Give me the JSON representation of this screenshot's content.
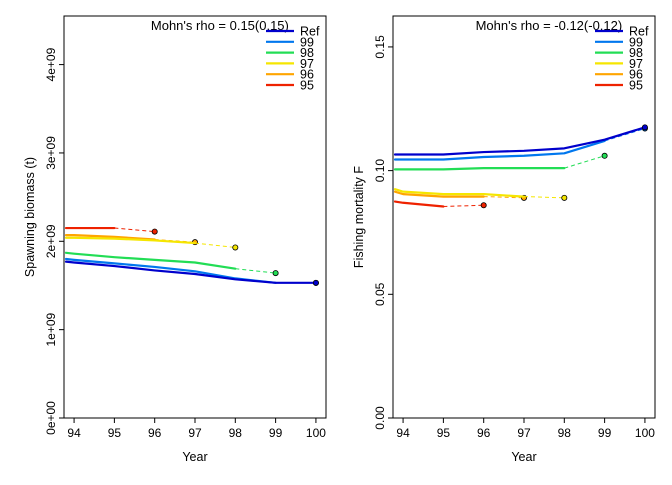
{
  "chart_data": [
    {
      "type": "line",
      "annotation": "Mohn's rho = 0.15(0.15)",
      "xlabel": "Year",
      "ylabel": "Spawning biomass (t)",
      "xlim": [
        93.75,
        100.25
      ],
      "ylim": [
        0,
        4550000000.0
      ],
      "x_ticks": [
        94,
        95,
        96,
        97,
        98,
        99,
        100
      ],
      "x_tick_labels": [
        "94",
        "95",
        "96",
        "97",
        "98",
        "99",
        "100"
      ],
      "y_ticks": [
        0,
        1000000000.0,
        2000000000.0,
        3000000000.0,
        4000000000.0
      ],
      "y_tick_labels": [
        "0e+00",
        "1e+09",
        "2e+09",
        "3e+09",
        "4e+09"
      ],
      "legend": "top-right",
      "series": [
        {
          "name": "Ref",
          "color": "#0000cc",
          "x": [
            93.8,
            94,
            95,
            96,
            97,
            98,
            99,
            100
          ],
          "y": [
            1770000000.0,
            1760000000.0,
            1720000000.0,
            1670000000.0,
            1630000000.0,
            1570000000.0,
            1530000000.0,
            1530000000.0
          ]
        },
        {
          "name": "99",
          "color": "#0077ee",
          "x": [
            93.8,
            94,
            95,
            96,
            97,
            98,
            99
          ],
          "y": [
            1800000000.0,
            1790000000.0,
            1750000000.0,
            1710000000.0,
            1660000000.0,
            1580000000.0,
            1530000000.0
          ],
          "proj_x": [
            99,
            100
          ],
          "proj_y": [
            1530000000.0,
            1530000000.0
          ]
        },
        {
          "name": "98",
          "color": "#22dd55",
          "x": [
            93.8,
            94,
            95,
            96,
            97,
            98
          ],
          "y": [
            1870000000.0,
            1860000000.0,
            1820000000.0,
            1790000000.0,
            1760000000.0,
            1690000000.0
          ],
          "proj_x": [
            98,
            99
          ],
          "proj_y": [
            1690000000.0,
            1640000000.0
          ]
        },
        {
          "name": "97",
          "color": "#f5e600",
          "x": [
            93.8,
            94,
            95,
            96,
            97
          ],
          "y": [
            2040000000.0,
            2040000000.0,
            2030000000.0,
            2010000000.0,
            1980000000.0
          ],
          "proj_x": [
            97,
            98
          ],
          "proj_y": [
            1980000000.0,
            1930000000.0
          ]
        },
        {
          "name": "96",
          "color": "#ffa500",
          "x": [
            93.8,
            94,
            95,
            96
          ],
          "y": [
            2070000000.0,
            2070000000.0,
            2050000000.0,
            2020000000.0
          ],
          "proj_x": [
            96,
            97
          ],
          "proj_y": [
            2020000000.0,
            1990000000.0
          ]
        },
        {
          "name": "95",
          "color": "#ee2200",
          "x": [
            93.8,
            94,
            95
          ],
          "y": [
            2150000000.0,
            2150000000.0,
            2150000000.0
          ],
          "proj_x": [
            95,
            96
          ],
          "proj_y": [
            2150000000.0,
            2110000000.0
          ]
        }
      ]
    },
    {
      "type": "line",
      "annotation": "Mohn's rho = -0.12(-0.12)",
      "xlabel": "Year",
      "ylabel": "Fishing mortality F",
      "xlim": [
        93.75,
        100.25
      ],
      "ylim": [
        0,
        0.1625
      ],
      "x_ticks": [
        94,
        95,
        96,
        97,
        98,
        99,
        100
      ],
      "x_tick_labels": [
        "94",
        "95",
        "96",
        "97",
        "98",
        "99",
        "100"
      ],
      "y_ticks": [
        0,
        0.05,
        0.1,
        0.15
      ],
      "y_tick_labels": [
        "0.00",
        "0.05",
        "0.10",
        "0.15"
      ],
      "legend": "top-right",
      "series": [
        {
          "name": "Ref",
          "color": "#0000cc",
          "x": [
            93.8,
            94,
            95,
            96,
            97,
            98,
            99,
            100
          ],
          "y": [
            0.1065,
            0.1065,
            0.1065,
            0.1075,
            0.108,
            0.109,
            0.1125,
            0.1175
          ]
        },
        {
          "name": "99",
          "color": "#0077ee",
          "x": [
            93.8,
            94,
            95,
            96,
            97,
            98,
            99
          ],
          "y": [
            0.1045,
            0.1045,
            0.1045,
            0.1055,
            0.106,
            0.107,
            0.112
          ],
          "proj_x": [
            99,
            100
          ],
          "proj_y": [
            0.112,
            0.117
          ]
        },
        {
          "name": "98",
          "color": "#22dd55",
          "x": [
            93.8,
            94,
            95,
            96,
            97,
            98
          ],
          "y": [
            0.1005,
            0.1005,
            0.1005,
            0.101,
            0.101,
            0.101
          ],
          "proj_x": [
            98,
            99
          ],
          "proj_y": [
            0.101,
            0.106
          ]
        },
        {
          "name": "97",
          "color": "#f5e600",
          "x": [
            93.8,
            94,
            95,
            96,
            97
          ],
          "y": [
            0.0925,
            0.0915,
            0.0905,
            0.0905,
            0.0895
          ],
          "proj_x": [
            97,
            98
          ],
          "proj_y": [
            0.0895,
            0.089
          ]
        },
        {
          "name": "96",
          "color": "#ffa500",
          "x": [
            93.8,
            94,
            95,
            96
          ],
          "y": [
            0.0915,
            0.0905,
            0.0895,
            0.0895
          ],
          "proj_x": [
            96,
            97
          ],
          "proj_y": [
            0.0895,
            0.089
          ]
        },
        {
          "name": "95",
          "color": "#ee2200",
          "x": [
            93.8,
            94,
            95
          ],
          "y": [
            0.0875,
            0.087,
            0.0855
          ],
          "proj_x": [
            95,
            96
          ],
          "proj_y": [
            0.0855,
            0.086
          ]
        }
      ]
    }
  ]
}
